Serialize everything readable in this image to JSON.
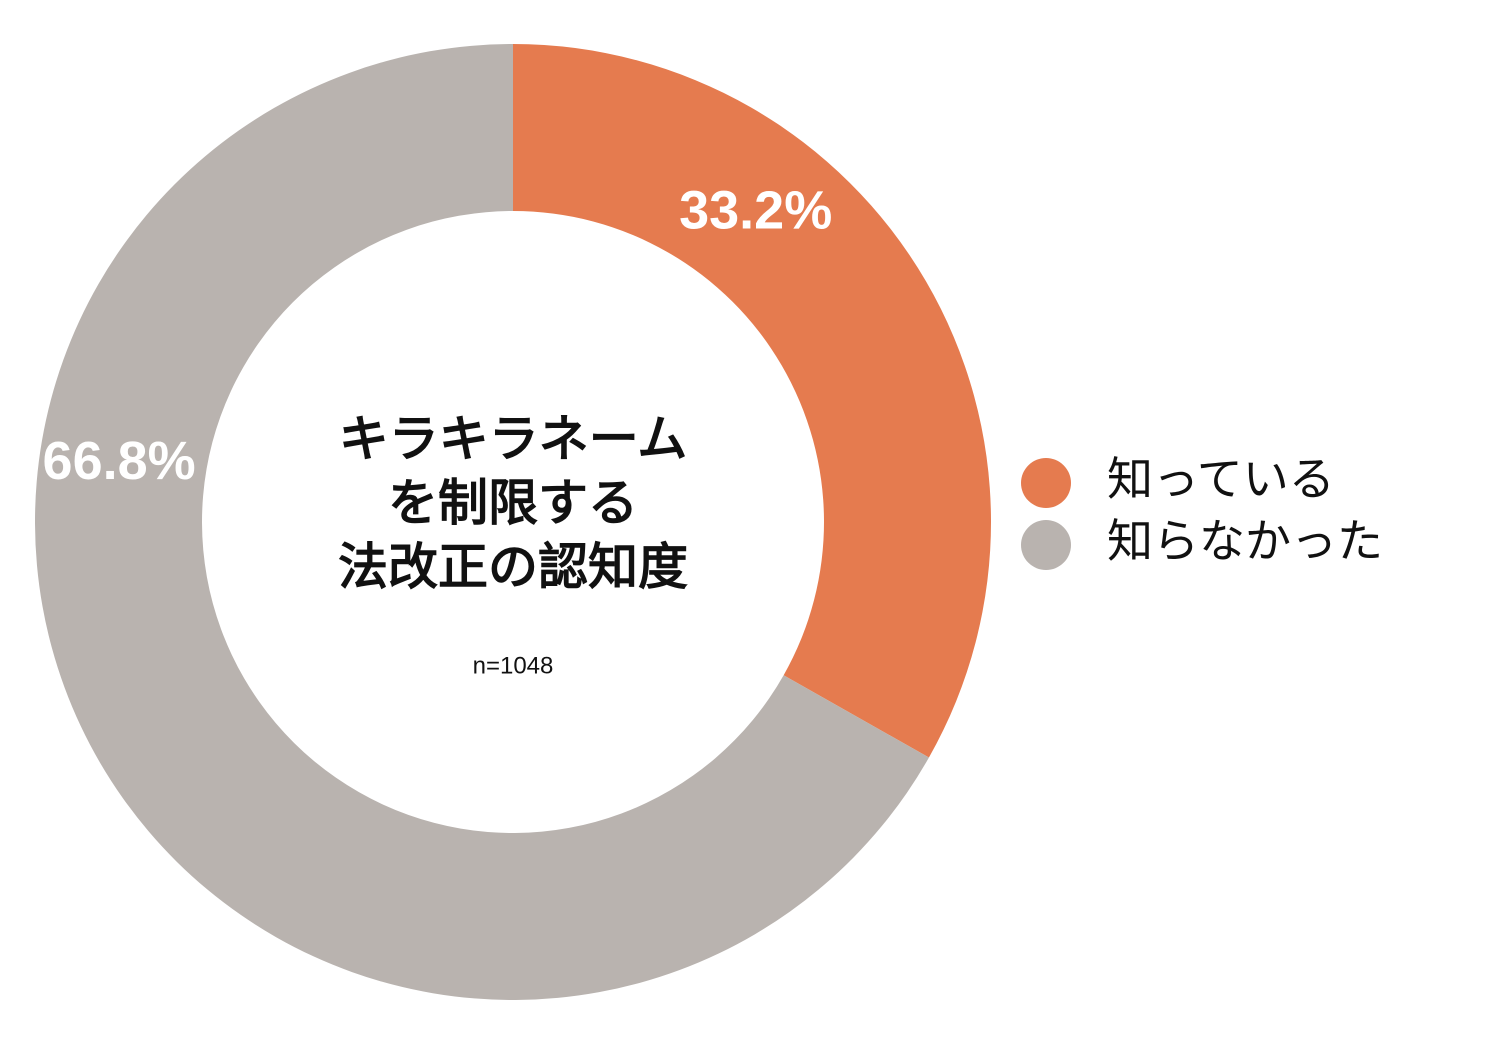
{
  "chart_data": {
    "type": "donut",
    "title": [
      "キラキラネーム",
      "を制限する",
      "法改正の認知度"
    ],
    "subtitle": "n=1048",
    "categories": [
      "知っている",
      "知らなかった"
    ],
    "values": [
      33.2,
      66.8
    ],
    "value_labels": [
      "33.2%",
      "66.8%"
    ],
    "colors": [
      "#E57B4F",
      "#B9B3AF"
    ],
    "legend": "right"
  }
}
